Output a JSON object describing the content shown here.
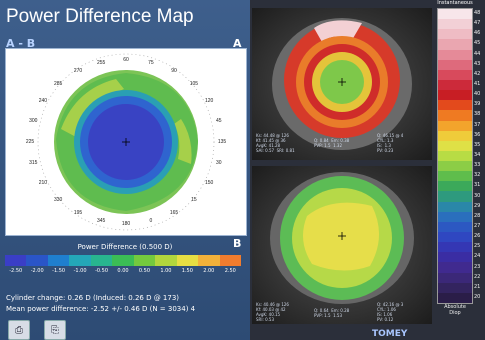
{
  "app": {
    "title": "Power Difference Map",
    "pane_label": "A - B",
    "pane_a": "A",
    "pane_b": "B"
  },
  "map": {
    "ticks": [
      "60",
      "75",
      "90",
      "105",
      "120",
      "45",
      "135",
      "30",
      "150",
      "15",
      "165",
      "0",
      "180",
      "345",
      "195",
      "330",
      "210",
      "315",
      "225",
      "300",
      "240",
      "285",
      "270",
      "255"
    ]
  },
  "legend": {
    "title": "Power Difference (0.500 D)",
    "colors": [
      "#3a3ec6",
      "#2a55c8",
      "#1f7fcf",
      "#24a7b8",
      "#28b58f",
      "#3bbd55",
      "#74c93e",
      "#b2d63d",
      "#e6de43",
      "#f2b13a",
      "#f07c2e"
    ],
    "labels": [
      "-2.50",
      "-2.00",
      "-1.50",
      "-1.00",
      "-0.50",
      "0.00",
      "0.50",
      "1.00",
      "1.50",
      "2.00",
      "2.50"
    ]
  },
  "stats": {
    "cylinder_line": "Cylinder change:  0.26 D (Induced:  0.26 D @ 173)",
    "mean_line": "Mean power difference: -2.52 +/-  0.46 D (N = 3034)  4"
  },
  "buttons": [
    {
      "icon": "print-icon",
      "glyph": "⎙"
    },
    {
      "icon": "print-preview-icon",
      "glyph": "⎘"
    }
  ],
  "right_scale": {
    "head": "Instantaneous",
    "foot_line1": "Absolute",
    "foot_line2": "Diop",
    "colors": [
      "#f7e6ea",
      "#f2d0d6",
      "#efbcc4",
      "#eaa6b0",
      "#e58a98",
      "#de6a7c",
      "#d84a5c",
      "#cc2a3a",
      "#c81e24",
      "#e34a1c",
      "#ef7a22",
      "#f3a42c",
      "#efcc3a",
      "#dfe046",
      "#b8dc44",
      "#8ccd46",
      "#5fbd4c",
      "#3ca95a",
      "#2e9a7e",
      "#2a87a8",
      "#2a6fbd",
      "#2c58c2",
      "#2f47c1",
      "#3437b4",
      "#3a2da3",
      "#402a8f",
      "#3b2878",
      "#33245f",
      "#2a1d48"
    ],
    "labels": [
      "48",
      "47",
      "46",
      "45",
      "44",
      "43",
      "42",
      "41",
      "40",
      "39",
      "38",
      "37",
      "36",
      "35",
      "34",
      "33",
      "32",
      "31",
      "30",
      "29",
      "28",
      "27",
      "26",
      "25",
      "24",
      "23",
      "22",
      "21",
      "20"
    ]
  },
  "eye_top": {
    "info_left": "Ks: 44.48 @ 126\nKf: 41.45 @ 36\nAvgK: 41.28\nSAI: 0.57  SRI: 0.81",
    "info_mid": "Q: 0.84  Em: 0.38\nPVP: 1.5  1.32",
    "info_right": "Q: 46.15 @ 4\nCYL: 1.3\nIS:  1.3\nPV: 0.23"
  },
  "eye_bottom": {
    "info_left": "Ks: 40.46 @ 126\nKf: 40.03 @ 42\nAvgK: 40.15\nSRI: 0.53",
    "info_mid": "Q: 0.64  Em: 0.28\nPVP: 1.5  1.53",
    "info_right": "Q: 42.16 @ 3\nCYL: 1.06\nIS: 1.06\nPV: 0.12"
  },
  "brand": "TOMEY"
}
